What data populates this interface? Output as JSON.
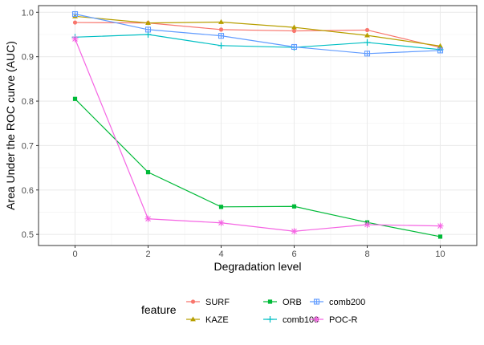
{
  "chart_data": {
    "type": "line",
    "title": "",
    "xlabel": "Degradation level",
    "ylabel": "Area Under the ROC curve (AUC)",
    "x": [
      0,
      2,
      4,
      6,
      8,
      10
    ],
    "xticks": [
      0,
      2,
      4,
      6,
      8,
      10
    ],
    "yticks": [
      0.5,
      0.6,
      0.7,
      0.8,
      0.9,
      1.0
    ],
    "ytick_labels": [
      "0.5",
      "0.6",
      "0.7",
      "0.8",
      "0.9",
      "1.0"
    ],
    "xlim": [
      -1,
      11
    ],
    "ylim": [
      0.475,
      1.015
    ],
    "grid": true,
    "legend_title": "feature",
    "legend_position": "bottom",
    "series": [
      {
        "name": "SURF",
        "color": "#F8766D",
        "marker": "circle",
        "values": [
          0.977,
          0.976,
          0.961,
          0.958,
          0.96,
          0.921
        ]
      },
      {
        "name": "KAZE",
        "color": "#B79F00",
        "marker": "triangle",
        "values": [
          0.991,
          0.976,
          0.978,
          0.966,
          0.948,
          0.924
        ]
      },
      {
        "name": "ORB",
        "color": "#00BA38",
        "marker": "square",
        "values": [
          0.805,
          0.64,
          0.562,
          0.563,
          0.527,
          0.495
        ]
      },
      {
        "name": "comb100",
        "color": "#00BFC4",
        "marker": "plus",
        "values": [
          0.944,
          0.95,
          0.925,
          0.921,
          0.932,
          0.916
        ]
      },
      {
        "name": "comb200",
        "color": "#619CFF",
        "marker": "boxplus",
        "values": [
          0.996,
          0.961,
          0.947,
          0.922,
          0.907,
          0.914
        ]
      },
      {
        "name": "POC-R",
        "color": "#F564E3",
        "marker": "asterisk",
        "values": [
          0.94,
          0.535,
          0.526,
          0.507,
          0.522,
          0.519
        ]
      }
    ]
  }
}
